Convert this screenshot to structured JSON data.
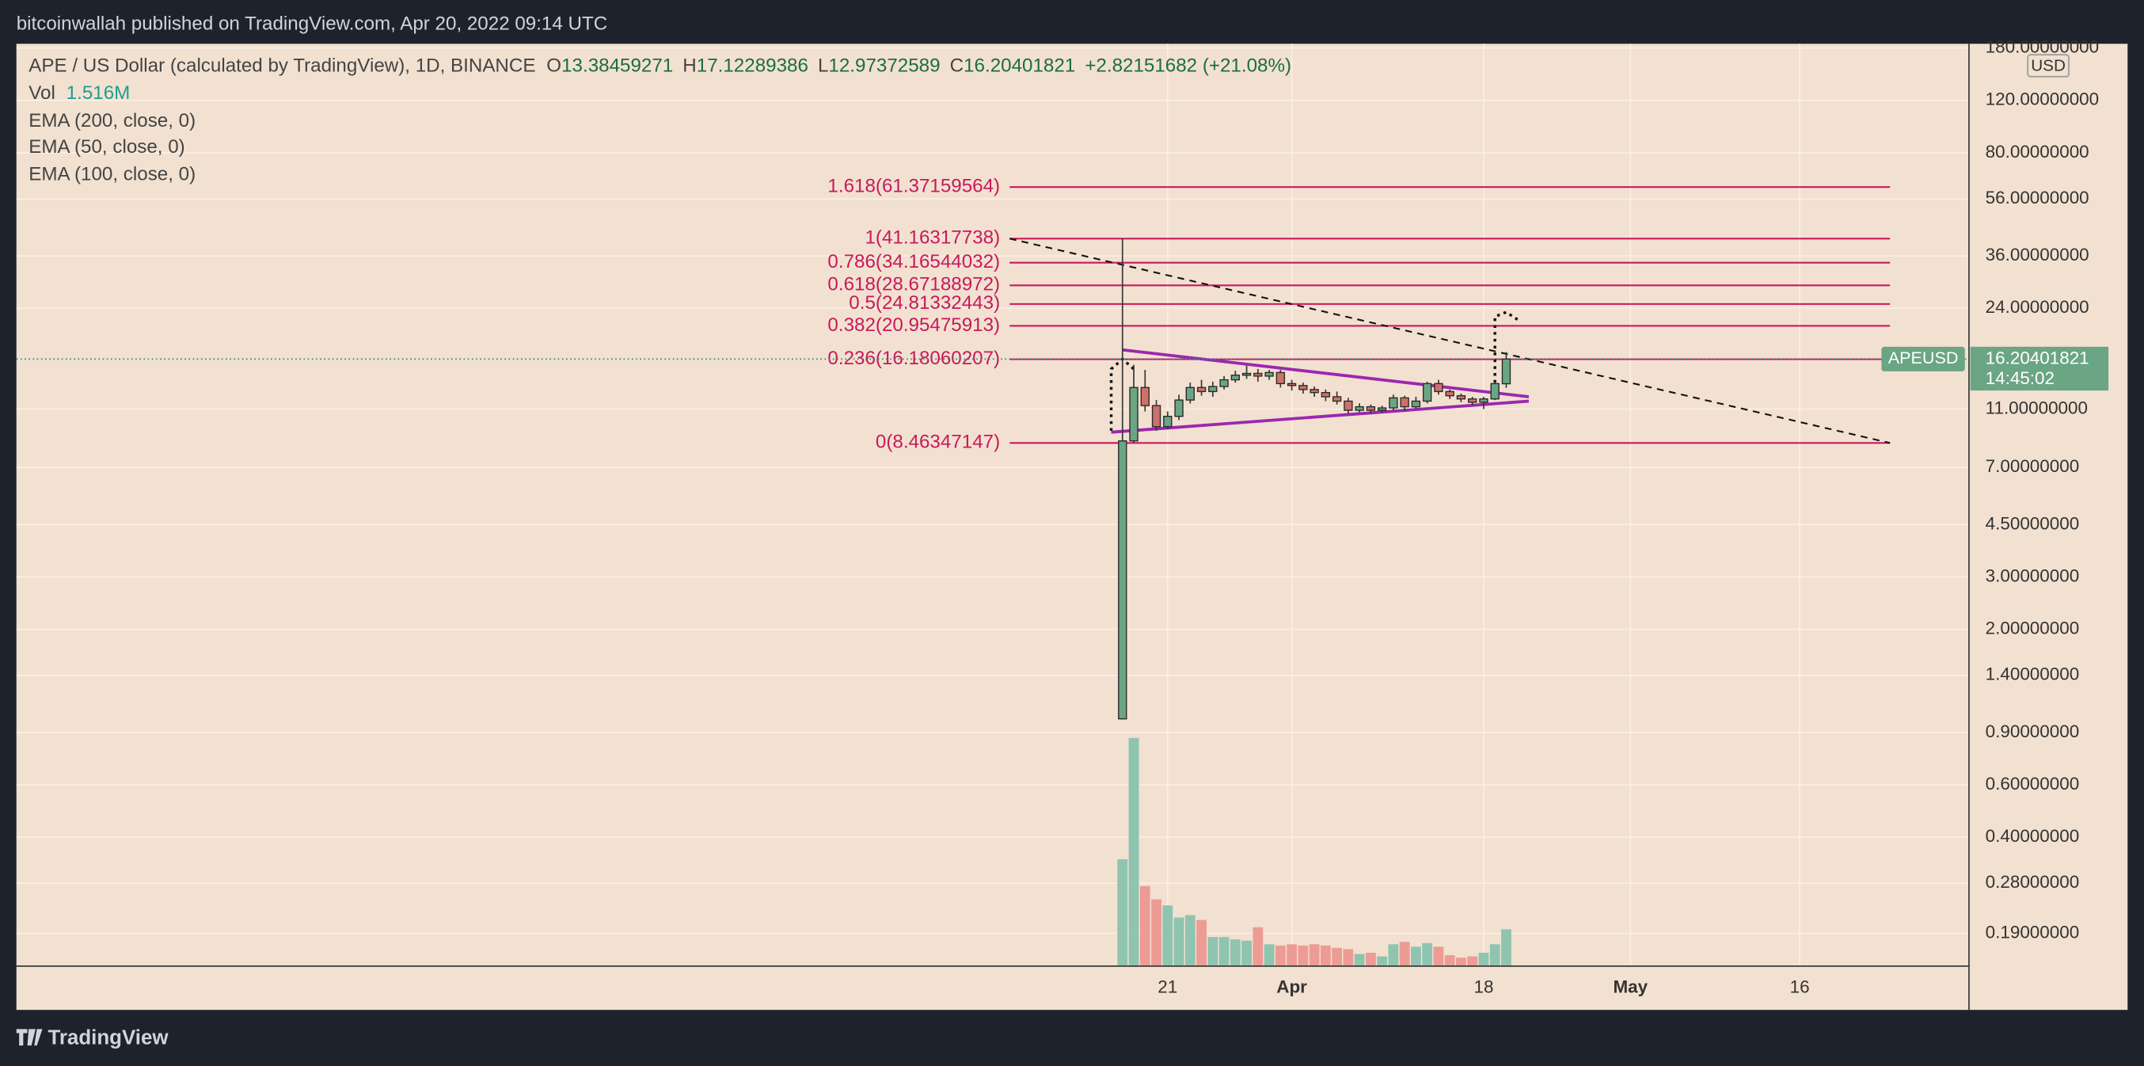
{
  "header": "bitcoinwallah published on TradingView.com, Apr 20, 2022 09:14 UTC",
  "footer": "TradingView",
  "chart_data": {
    "type": "candlestick",
    "title": "APE / US Dollar (calculated by TradingView), 1D, BINANCE",
    "ohlc_labels": [
      "O",
      "H",
      "L",
      "C"
    ],
    "change_label": "+2.82151682 (+21.08%)",
    "symbol": "APEUSD",
    "countdown": "14:45:02",
    "currency": "USD",
    "indicators": [
      "EMA (200, close, 0)",
      "EMA (50, close, 0)",
      "EMA (100, close, 0)"
    ],
    "up_color": "#6aa584",
    "down_color": "#d0706b",
    "log_scale": true,
    "grid": true,
    "x": [
      "2022-03-17",
      "2022-03-18",
      "2022-03-19",
      "2022-03-20",
      "2022-03-21",
      "2022-03-22",
      "2022-03-23",
      "2022-03-24",
      "2022-03-25",
      "2022-03-26",
      "2022-03-27",
      "2022-03-28",
      "2022-03-29",
      "2022-03-30",
      "2022-03-31",
      "2022-04-01",
      "2022-04-02",
      "2022-04-03",
      "2022-04-04",
      "2022-04-05",
      "2022-04-06",
      "2022-04-07",
      "2022-04-08",
      "2022-04-09",
      "2022-04-10",
      "2022-04-11",
      "2022-04-12",
      "2022-04-13",
      "2022-04-14",
      "2022-04-15",
      "2022-04-16",
      "2022-04-17",
      "2022-04-18",
      "2022-04-19",
      "2022-04-20"
    ],
    "open": [
      1.0,
      8.6,
      13.0,
      11.3,
      9.6,
      10.4,
      11.8,
      13.0,
      12.6,
      13.1,
      13.8,
      14.3,
      14.5,
      14.2,
      14.6,
      13.4,
      13.2,
      12.8,
      12.5,
      12.1,
      11.7,
      10.9,
      11.2,
      10.9,
      11.1,
      12.0,
      11.2,
      11.7,
      13.4,
      12.6,
      12.2,
      11.9,
      11.6,
      11.9,
      13.38459271
    ],
    "high": [
      41.16,
      15.5,
      14.9,
      11.8,
      10.8,
      12.3,
      13.5,
      13.8,
      13.6,
      14.2,
      14.8,
      15.4,
      15.0,
      14.9,
      14.9,
      13.8,
      13.5,
      13.1,
      12.8,
      12.6,
      12.0,
      11.5,
      11.4,
      11.3,
      12.3,
      12.2,
      12.1,
      13.6,
      13.8,
      12.8,
      12.4,
      12.1,
      12.1,
      13.6,
      17.12289386
    ],
    "low": [
      1.0,
      8.5,
      10.8,
      9.3,
      9.4,
      10.1,
      11.5,
      12.2,
      12.1,
      12.8,
      13.5,
      13.9,
      13.6,
      13.8,
      13.0,
      12.7,
      12.4,
      12.1,
      11.7,
      11.4,
      10.6,
      10.7,
      10.6,
      10.7,
      10.9,
      10.8,
      11.0,
      11.5,
      12.3,
      11.9,
      11.6,
      11.3,
      11.0,
      11.8,
      12.97372589
    ],
    "close": [
      8.6,
      13.0,
      11.3,
      9.6,
      10.4,
      11.8,
      13.0,
      12.6,
      13.1,
      13.8,
      14.3,
      14.5,
      14.2,
      14.6,
      13.4,
      13.2,
      12.8,
      12.5,
      12.1,
      11.7,
      10.9,
      11.2,
      10.9,
      11.1,
      12.0,
      11.2,
      11.7,
      13.4,
      12.6,
      12.2,
      11.9,
      11.6,
      11.9,
      13.4,
      16.20401821
    ],
    "volume": {
      "name": "Vol",
      "last_label": "1.516M",
      "up_color": "#8fc4b0",
      "down_color": "#ec9c94",
      "ylim": [
        0,
        38
      ],
      "values": [
        4.4,
        9.4,
        3.3,
        2.75,
        2.5,
        2.0,
        2.1,
        1.9,
        1.2,
        1.2,
        1.1,
        1.05,
        1.6,
        0.9,
        0.85,
        0.9,
        0.85,
        0.9,
        0.85,
        0.75,
        0.7,
        0.5,
        0.55,
        0.4,
        0.9,
        1.0,
        0.8,
        0.95,
        0.8,
        0.45,
        0.35,
        0.4,
        0.55,
        0.9,
        1.516
      ]
    },
    "xlim": [
      "2021-12-09",
      "2022-05-31"
    ],
    "xticks": [
      {
        "value": "2022-03-21",
        "label": "21"
      },
      {
        "value": "2022-04-01",
        "label": "Apr"
      },
      {
        "value": "2022-04-18",
        "label": "18"
      },
      {
        "value": "2022-05-01",
        "label": "May"
      },
      {
        "value": "2022-05-16",
        "label": "16"
      }
    ],
    "ylim": [
      0.1475,
      186
    ],
    "yticks": [
      {
        "value": 180,
        "label": "180.00000000"
      },
      {
        "value": 120,
        "label": "120.00000000"
      },
      {
        "value": 80,
        "label": "80.00000000"
      },
      {
        "value": 56,
        "label": "56.00000000"
      },
      {
        "value": 36,
        "label": "36.00000000"
      },
      {
        "value": 24,
        "label": "24.00000000"
      },
      {
        "value": 11,
        "label": "11.00000000"
      },
      {
        "value": 7,
        "label": "7.00000000"
      },
      {
        "value": 4.5,
        "label": "4.50000000"
      },
      {
        "value": 3,
        "label": "3.00000000"
      },
      {
        "value": 2,
        "label": "2.00000000"
      },
      {
        "value": 1.4,
        "label": "1.40000000"
      },
      {
        "value": 0.9,
        "label": "0.90000000"
      },
      {
        "value": 0.6,
        "label": "0.60000000"
      },
      {
        "value": 0.4,
        "label": "0.40000000"
      },
      {
        "value": 0.28,
        "label": "0.28000000"
      },
      {
        "value": 0.19,
        "label": "0.19000000"
      }
    ],
    "fib": {
      "color": "#c8195c",
      "from": "2022-03-07",
      "to": "2022-05-24",
      "levels": [
        {
          "value": 61.37159564,
          "label": "1.618(61.37159564)"
        },
        {
          "value": 41.16317738,
          "label": "1(41.16317738)"
        },
        {
          "value": 34.16544032,
          "label": "0.786(34.16544032)"
        },
        {
          "value": 28.67188972,
          "label": "0.618(28.67188972)"
        },
        {
          "value": 24.81332443,
          "label": "0.5(24.81332443)"
        },
        {
          "value": 20.95475913,
          "label": "0.382(20.95475913)"
        },
        {
          "value": 16.18060207,
          "label": "0.236(16.18060207)"
        },
        {
          "value": 8.46347147,
          "label": "0(8.46347147)"
        }
      ]
    },
    "trendlines": [
      {
        "style": "dashed",
        "color": "#111111",
        "x": [
          "2022-03-07",
          "2022-05-24"
        ],
        "values": [
          41.16317738,
          8.46347147
        ]
      },
      {
        "style": "solid",
        "color": "#9c27b0",
        "x": [
          "2022-03-17",
          "2022-04-22"
        ],
        "values": [
          17.4,
          12.1
        ]
      },
      {
        "style": "solid",
        "color": "#9c27b0",
        "x": [
          "2022-03-16",
          "2022-04-22"
        ],
        "values": [
          9.2,
          11.7
        ]
      },
      {
        "style": "dotted",
        "color": "#111111",
        "x": [
          "2022-03-16",
          "2022-03-16",
          "2022-03-17",
          "2022-03-18"
        ],
        "values": [
          9.3,
          15.0,
          16.2,
          15.0
        ]
      },
      {
        "style": "dotted",
        "color": "#111111",
        "x": [
          "2022-04-19",
          "2022-04-19",
          "2022-04-20",
          "2022-04-21"
        ],
        "values": [
          13.5,
          22.5,
          23.3,
          22.0
        ]
      }
    ]
  }
}
